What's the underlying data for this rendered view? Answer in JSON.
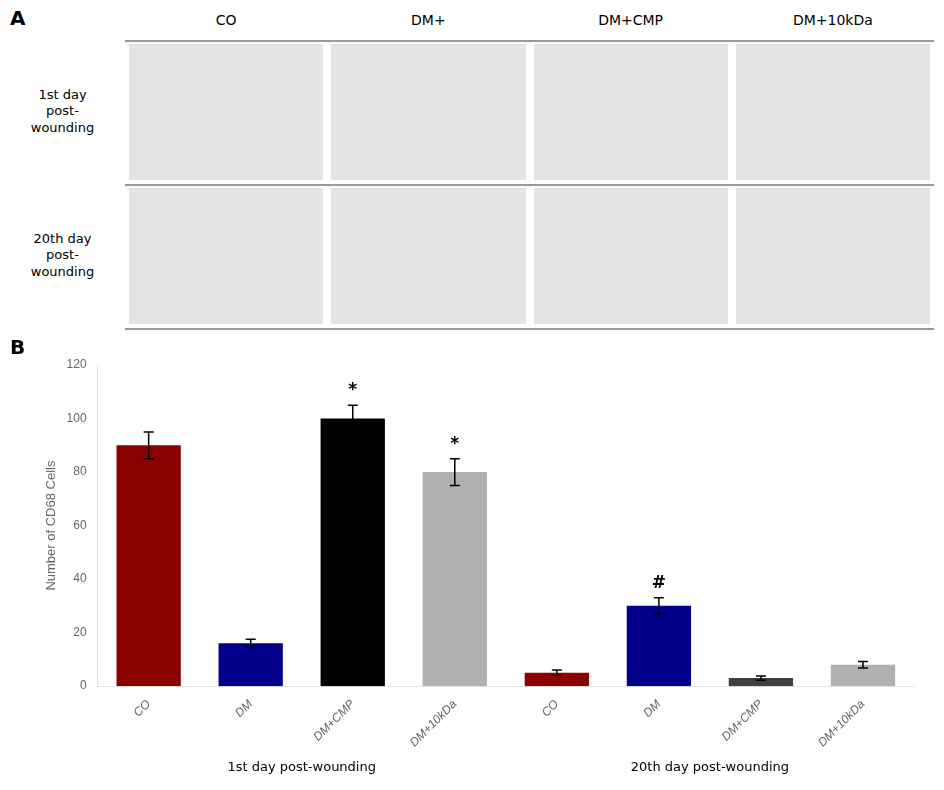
{
  "chart_data": {
    "type": "bar",
    "panel_labels": [
      "A",
      "B"
    ],
    "column_labels": [
      "CO",
      "DM+",
      "DM+CMP",
      "DM+10kDa"
    ],
    "row_labels": [
      "1st day\npost-\nwounding",
      "20th day\npost-\nwounding"
    ],
    "group_labels": [
      "1st day post-wounding",
      "20th day post-wounding"
    ],
    "categories": [
      "CO",
      "DM",
      "DM+CMP",
      "DM+10kDa",
      "CO",
      "DM",
      "DM+CMP",
      "DM+10kDa"
    ],
    "values": [
      90,
      16,
      100,
      80,
      5,
      30,
      3,
      8
    ],
    "errors": [
      5,
      1.5,
      5,
      5,
      1,
      3,
      0.8,
      1.2
    ],
    "colors": [
      "#8B0000",
      "#00008B",
      "#000000",
      "#B0B0B0",
      "#8B0000",
      "#00008B",
      "#404040",
      "#B0B0B0"
    ],
    "annotations": [
      null,
      null,
      "*",
      "*",
      null,
      "#",
      null,
      null
    ],
    "ylabel": "Number of CD68 Cells",
    "ylim": [
      0,
      120
    ],
    "yticks": [
      0,
      20,
      40,
      60,
      80,
      100,
      120
    ],
    "grid": false
  }
}
